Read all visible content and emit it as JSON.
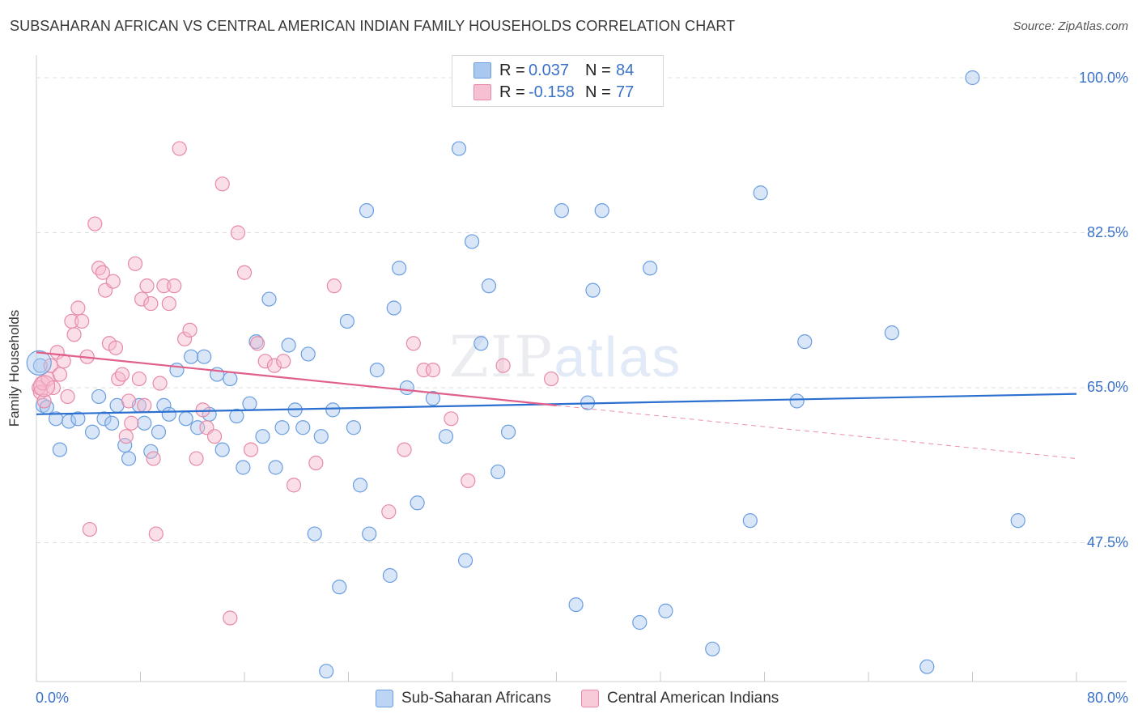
{
  "title": "SUBSAHARAN AFRICAN VS CENTRAL AMERICAN INDIAN FAMILY HOUSEHOLDS CORRELATION CHART",
  "source": "Source: ZipAtlas.com",
  "watermark": {
    "zip": "ZIP",
    "atlas": "atlas"
  },
  "legend": {
    "r_label": "R =",
    "n_label": "N =",
    "series": [
      {
        "name": "Sub-Saharan Africans",
        "r": "0.037",
        "n": "84",
        "color": "#a9c8f0",
        "edge": "#6b9ee0",
        "line": "#2b6fcf"
      },
      {
        "name": "Central American Indians",
        "r": "-0.158",
        "n": "77",
        "color": "#f6b8cc",
        "edge": "#e68aa8",
        "line": "#e0608a"
      }
    ]
  },
  "chart_data": {
    "type": "scatter",
    "title": "SUBSAHARAN AFRICAN VS CENTRAL AMERICAN INDIAN FAMILY HOUSEHOLDS CORRELATION CHART",
    "xlabel": "",
    "ylabel": "Family Households",
    "xlim": [
      0,
      80
    ],
    "ylim": [
      32,
      102
    ],
    "x_tick_labels": [
      "0.0%",
      "80.0%"
    ],
    "y_ticks": [
      47.5,
      65.0,
      82.5,
      100.0
    ],
    "y_tick_labels": [
      "47.5%",
      "65.0%",
      "82.5%",
      "100.0%"
    ],
    "series": [
      {
        "name": "Sub-Saharan Africans",
        "trend": {
          "x": [
            0,
            80
          ],
          "y": [
            62.0,
            64.3
          ]
        },
        "points": [
          [
            0.3,
            67.5
          ],
          [
            0.5,
            63.0
          ],
          [
            0.8,
            62.8
          ],
          [
            1.5,
            61.5
          ],
          [
            1.8,
            58.0
          ],
          [
            2.5,
            61.2
          ],
          [
            3.2,
            61.5
          ],
          [
            4.3,
            60.0
          ],
          [
            4.8,
            64.0
          ],
          [
            5.2,
            61.5
          ],
          [
            5.8,
            61.0
          ],
          [
            6.2,
            63.0
          ],
          [
            6.8,
            58.5
          ],
          [
            7.1,
            57.0
          ],
          [
            7.9,
            63.0
          ],
          [
            8.3,
            61.0
          ],
          [
            8.8,
            57.8
          ],
          [
            9.4,
            60.0
          ],
          [
            9.8,
            63.0
          ],
          [
            10.2,
            62.0
          ],
          [
            10.8,
            67.0
          ],
          [
            11.5,
            61.5
          ],
          [
            11.9,
            68.5
          ],
          [
            12.4,
            60.5
          ],
          [
            12.9,
            68.5
          ],
          [
            13.3,
            62.0
          ],
          [
            13.9,
            66.5
          ],
          [
            14.3,
            58.0
          ],
          [
            14.9,
            66.0
          ],
          [
            15.4,
            61.8
          ],
          [
            15.9,
            56.0
          ],
          [
            16.4,
            63.2
          ],
          [
            16.9,
            70.2
          ],
          [
            17.4,
            59.5
          ],
          [
            17.9,
            75.0
          ],
          [
            18.4,
            56.0
          ],
          [
            18.9,
            60.5
          ],
          [
            19.4,
            69.8
          ],
          [
            19.9,
            62.5
          ],
          [
            20.5,
            60.5
          ],
          [
            20.9,
            68.8
          ],
          [
            21.4,
            48.5
          ],
          [
            21.9,
            59.5
          ],
          [
            22.3,
            33.0
          ],
          [
            22.8,
            62.5
          ],
          [
            23.3,
            42.5
          ],
          [
            23.9,
            72.5
          ],
          [
            24.4,
            60.5
          ],
          [
            24.9,
            54.0
          ],
          [
            25.4,
            85.0
          ],
          [
            25.6,
            48.5
          ],
          [
            26.2,
            67.0
          ],
          [
            27.2,
            43.8
          ],
          [
            27.5,
            74.0
          ],
          [
            27.9,
            78.5
          ],
          [
            28.5,
            65.0
          ],
          [
            29.3,
            52.0
          ],
          [
            30.5,
            63.8
          ],
          [
            31.5,
            59.5
          ],
          [
            32.5,
            92.0
          ],
          [
            33.0,
            45.5
          ],
          [
            33.5,
            81.5
          ],
          [
            34.2,
            70.0
          ],
          [
            34.8,
            76.5
          ],
          [
            35.5,
            55.5
          ],
          [
            36.3,
            60.0
          ],
          [
            40.4,
            85.0
          ],
          [
            41.5,
            40.5
          ],
          [
            42.4,
            63.3
          ],
          [
            42.8,
            76.0
          ],
          [
            43.5,
            85.0
          ],
          [
            46.4,
            38.5
          ],
          [
            47.2,
            78.5
          ],
          [
            48.4,
            39.8
          ],
          [
            52.0,
            35.5
          ],
          [
            54.9,
            50.0
          ],
          [
            55.7,
            87.0
          ],
          [
            58.5,
            63.5
          ],
          [
            59.1,
            70.2
          ],
          [
            65.8,
            71.2
          ],
          [
            68.5,
            33.5
          ],
          [
            72.0,
            100.0
          ],
          [
            75.5,
            50.0
          ]
        ]
      },
      {
        "name": "Central American Indians",
        "trend": {
          "x": [
            0,
            40
          ],
          "y": [
            69.0,
            63.0
          ]
        },
        "trend_extension": {
          "x": [
            40,
            80
          ],
          "y": [
            63.0,
            57.0
          ]
        },
        "points": [
          [
            0.2,
            65.0
          ],
          [
            0.3,
            64.5
          ],
          [
            0.5,
            65.5
          ],
          [
            0.6,
            63.5
          ],
          [
            0.9,
            66.0
          ],
          [
            1.1,
            67.5
          ],
          [
            1.3,
            65.0
          ],
          [
            1.6,
            69.0
          ],
          [
            1.8,
            66.5
          ],
          [
            2.1,
            68.0
          ],
          [
            2.4,
            64.0
          ],
          [
            2.7,
            72.5
          ],
          [
            2.9,
            71.0
          ],
          [
            3.2,
            74.0
          ],
          [
            3.5,
            72.5
          ],
          [
            3.9,
            68.5
          ],
          [
            4.1,
            49.0
          ],
          [
            4.5,
            83.5
          ],
          [
            4.8,
            78.5
          ],
          [
            5.1,
            78.0
          ],
          [
            5.3,
            76.0
          ],
          [
            5.6,
            70.0
          ],
          [
            5.9,
            77.0
          ],
          [
            6.1,
            69.5
          ],
          [
            6.3,
            66.0
          ],
          [
            6.6,
            66.5
          ],
          [
            6.9,
            59.5
          ],
          [
            7.1,
            63.5
          ],
          [
            7.3,
            61.0
          ],
          [
            7.6,
            79.0
          ],
          [
            7.9,
            66.0
          ],
          [
            8.1,
            75.0
          ],
          [
            8.3,
            63.0
          ],
          [
            8.5,
            76.5
          ],
          [
            8.8,
            74.5
          ],
          [
            9.0,
            57.0
          ],
          [
            9.2,
            48.5
          ],
          [
            9.5,
            65.5
          ],
          [
            9.8,
            76.5
          ],
          [
            10.2,
            74.5
          ],
          [
            10.6,
            76.5
          ],
          [
            11.0,
            92.0
          ],
          [
            11.4,
            70.5
          ],
          [
            11.8,
            71.5
          ],
          [
            12.3,
            57.0
          ],
          [
            12.8,
            62.5
          ],
          [
            13.1,
            60.5
          ],
          [
            13.7,
            59.5
          ],
          [
            14.3,
            88.0
          ],
          [
            14.9,
            39.0
          ],
          [
            15.5,
            82.5
          ],
          [
            16.0,
            78.0
          ],
          [
            16.5,
            58.0
          ],
          [
            17.0,
            70.0
          ],
          [
            17.6,
            68.0
          ],
          [
            18.3,
            67.5
          ],
          [
            19.0,
            68.0
          ],
          [
            19.8,
            54.0
          ],
          [
            21.5,
            56.5
          ],
          [
            22.9,
            76.5
          ],
          [
            27.1,
            51.0
          ],
          [
            28.3,
            58.0
          ],
          [
            29.0,
            70.0
          ],
          [
            29.8,
            67.0
          ],
          [
            30.5,
            67.0
          ],
          [
            31.9,
            61.5
          ],
          [
            33.2,
            54.5
          ],
          [
            35.9,
            67.5
          ],
          [
            39.6,
            66.0
          ]
        ]
      }
    ]
  }
}
